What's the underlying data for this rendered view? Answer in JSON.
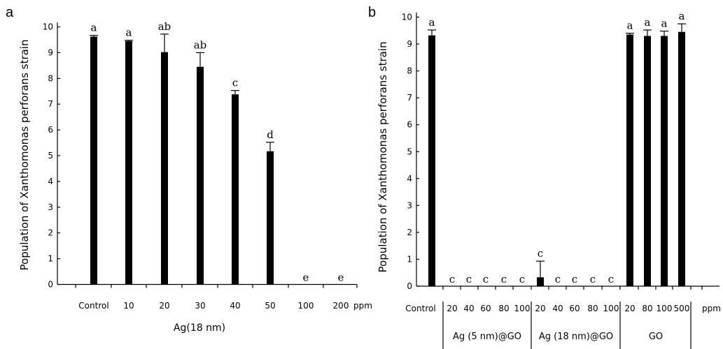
{
  "chart_data": [
    {
      "type": "bar",
      "panel_label": "a",
      "ylabel": "Population of Xanthomonas perforans strain",
      "xlabel": "Ag(18 nm)",
      "unit_label": "ppm",
      "ylim": [
        0,
        10
      ],
      "yticks": [
        0,
        1,
        2,
        3,
        4,
        5,
        6,
        7,
        8,
        9,
        10
      ],
      "categories": [
        "Control",
        "10",
        "20",
        "30",
        "40",
        "50",
        "100",
        "200"
      ],
      "values": [
        9.62,
        9.45,
        9.02,
        8.45,
        7.38,
        5.17,
        0,
        0
      ],
      "errors": [
        0.05,
        0.03,
        0.7,
        0.55,
        0.15,
        0.35,
        0,
        0
      ],
      "significance": [
        "a",
        "a",
        "ab",
        "ab",
        "c",
        "d",
        "e",
        "e"
      ],
      "bar_color": "#000000",
      "grid": false
    },
    {
      "type": "bar",
      "panel_label": "b",
      "ylabel": "Population of Xanthomonas perforans strain",
      "unit_label": "ppm",
      "ylim": [
        0,
        10
      ],
      "yticks": [
        0,
        1,
        2,
        3,
        4,
        5,
        6,
        7,
        8,
        9,
        10
      ],
      "categories": [
        "Control",
        "20",
        "40",
        "60",
        "80",
        "100",
        "20",
        "40",
        "60",
        "80",
        "100",
        "20",
        "80",
        "100",
        "500"
      ],
      "values": [
        9.32,
        0,
        0,
        0,
        0,
        0,
        0.33,
        0,
        0,
        0,
        0,
        9.35,
        9.3,
        9.3,
        9.45
      ],
      "errors": [
        0.2,
        0,
        0,
        0,
        0,
        0,
        0.6,
        0,
        0,
        0,
        0,
        0.05,
        0.22,
        0.18,
        0.3
      ],
      "significance": [
        "a",
        "c",
        "c",
        "c",
        "c",
        "c",
        "c",
        "c",
        "c",
        "c",
        "c",
        "a",
        "a",
        "a",
        "a"
      ],
      "groups": [
        {
          "label": "Ag (5 nm)@GO",
          "from": 1,
          "to": 5
        },
        {
          "label": "Ag (18 nm)@GO",
          "from": 6,
          "to": 10
        },
        {
          "label": "GO",
          "from": 11,
          "to": 14
        }
      ],
      "bar_color": "#000000",
      "grid": false
    }
  ]
}
